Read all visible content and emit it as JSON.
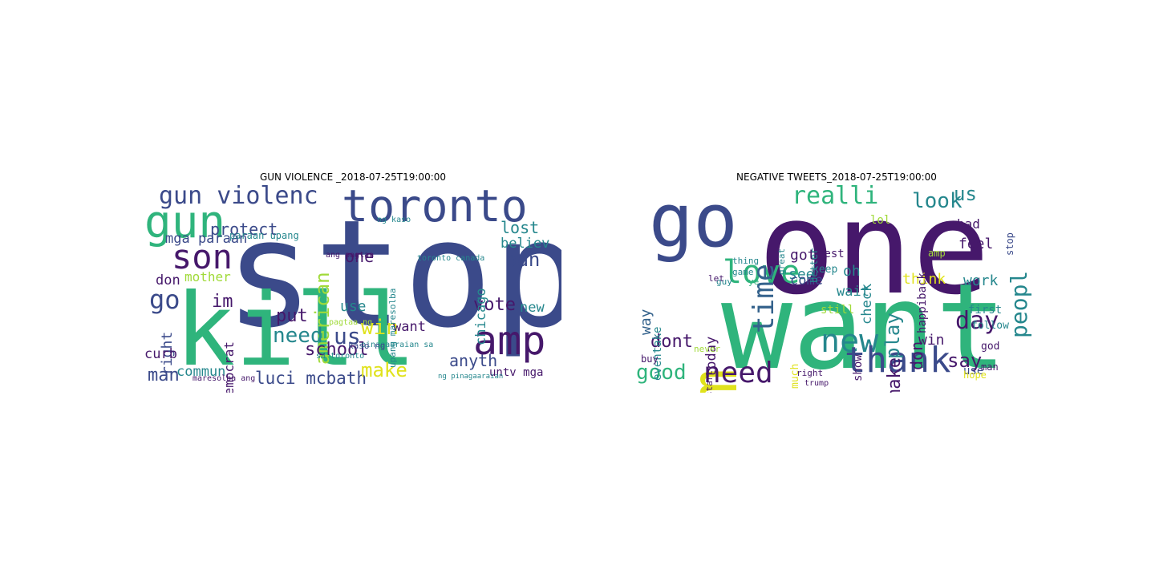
{
  "panels": [
    {
      "title": "GUN VIOLENCE _2018-07-25T19:00:00"
    },
    {
      "title": "NEGATIVE TWEETS_2018-07-25T19:00:00"
    }
  ],
  "colors": {
    "dark_purple": "#46186b",
    "navy": "#3b4a8a",
    "blue": "#34628c",
    "teal": "#25878d",
    "green": "#2fb47c",
    "lime": "#a0da39",
    "yellow": "#e0e21c"
  },
  "clouds": [
    {
      "words": [
        {
          "text": "stop",
          "c": "navy"
        },
        {
          "text": "kill",
          "c": "green"
        },
        {
          "text": "toronto",
          "c": "navy"
        },
        {
          "text": "gun",
          "c": "green"
        },
        {
          "text": "son",
          "c": "dark_purple"
        },
        {
          "text": "amp",
          "c": "dark_purple"
        },
        {
          "text": "gun violenc",
          "c": "navy"
        },
        {
          "text": "american",
          "c": "lime"
        },
        {
          "text": "luci mcbath",
          "c": "navy"
        },
        {
          "text": "school",
          "c": "dark_purple"
        },
        {
          "text": "make",
          "c": "yellow"
        },
        {
          "text": "win",
          "c": "yellow"
        },
        {
          "text": "us",
          "c": "navy"
        },
        {
          "text": "need",
          "c": "teal"
        },
        {
          "text": "ban",
          "c": "navy"
        },
        {
          "text": "lost",
          "c": "teal"
        },
        {
          "text": "believ",
          "c": "teal"
        },
        {
          "text": "vote",
          "c": "dark_purple"
        },
        {
          "text": "new",
          "c": "teal"
        },
        {
          "text": "anyth",
          "c": "navy"
        },
        {
          "text": "go",
          "c": "navy"
        },
        {
          "text": "protect",
          "c": "navy"
        },
        {
          "text": "mga paraan",
          "c": "navy"
        },
        {
          "text": "mother",
          "c": "lime"
        },
        {
          "text": "don",
          "c": "dark_purple"
        },
        {
          "text": "im",
          "c": "dark_purple"
        },
        {
          "text": "one",
          "c": "dark_purple"
        },
        {
          "text": "put",
          "c": "dark_purple"
        },
        {
          "text": "use",
          "c": "teal"
        },
        {
          "text": "want",
          "c": "dark_purple"
        },
        {
          "text": "chicago",
          "c": "teal"
        },
        {
          "text": "right",
          "c": "navy"
        },
        {
          "text": "curb",
          "c": "dark_purple"
        },
        {
          "text": "man",
          "c": "navy"
        },
        {
          "text": "commun",
          "c": "teal"
        },
        {
          "text": "democrat",
          "c": "dark_purple"
        },
        {
          "text": "untv mga",
          "c": "dark_purple"
        },
        {
          "text": "paraan upang",
          "c": "teal"
        },
        {
          "text": "upang maresolba",
          "c": "teal"
        },
        {
          "text": "toronto canada",
          "c": "teal"
        },
        {
          "text": "ang pagtaa",
          "c": "dark_purple"
        },
        {
          "text": "pagtaa ng",
          "c": "lime"
        },
        {
          "text": "maresolba ang",
          "c": "dark_purple"
        },
        {
          "text": "pinagaaraian sa",
          "c": "teal"
        },
        {
          "text": "ng pinagaaraian",
          "c": "teal"
        },
        {
          "text": "sa toronto",
          "c": "teal"
        },
        {
          "text": "kaso ng",
          "c": "navy"
        },
        {
          "text": "ng kaso",
          "c": "teal"
        }
      ]
    },
    {
      "words": [
        {
          "text": "one",
          "c": "dark_purple"
        },
        {
          "text": "want",
          "c": "green"
        },
        {
          "text": "go",
          "c": "navy"
        },
        {
          "text": "im",
          "c": "yellow"
        },
        {
          "text": "love",
          "c": "green"
        },
        {
          "text": "time",
          "c": "blue"
        },
        {
          "text": "realli",
          "c": "green"
        },
        {
          "text": "look",
          "c": "teal"
        },
        {
          "text": "us",
          "c": "teal"
        },
        {
          "text": "peopl",
          "c": "teal"
        },
        {
          "text": "know",
          "c": "dark_purple"
        },
        {
          "text": "new",
          "c": "teal"
        },
        {
          "text": "thank",
          "c": "navy"
        },
        {
          "text": "need",
          "c": "dark_purple"
        },
        {
          "text": "day",
          "c": "dark_purple"
        },
        {
          "text": "say",
          "c": "dark_purple"
        },
        {
          "text": "good",
          "c": "green"
        },
        {
          "text": "dont",
          "c": "dark_purple"
        },
        {
          "text": "got",
          "c": "dark_purple"
        },
        {
          "text": "see",
          "c": "teal"
        },
        {
          "text": "play",
          "c": "teal"
        },
        {
          "text": "make",
          "c": "dark_purple"
        },
        {
          "text": "don",
          "c": "dark_purple"
        },
        {
          "text": "think",
          "c": "yellow"
        },
        {
          "text": "work",
          "c": "teal"
        },
        {
          "text": "feel",
          "c": "dark_purple"
        },
        {
          "text": "check",
          "c": "teal"
        },
        {
          "text": "way",
          "c": "blue"
        },
        {
          "text": "eventake",
          "c": "teal"
        },
        {
          "text": "today",
          "c": "dark_purple"
        },
        {
          "text": "come",
          "c": "navy"
        },
        {
          "text": "wait",
          "c": "teal"
        },
        {
          "text": "oh",
          "c": "teal"
        },
        {
          "text": "show",
          "c": "dark_purple"
        },
        {
          "text": "much",
          "c": "yellow"
        },
        {
          "text": "win",
          "c": "dark_purple"
        },
        {
          "text": "use",
          "c": "navy"
        },
        {
          "text": "lol",
          "c": "lime"
        },
        {
          "text": "stop",
          "c": "navy"
        },
        {
          "text": "happiback",
          "c": "dark_purple"
        },
        {
          "text": "bad",
          "c": "dark_purple"
        },
        {
          "text": "first",
          "c": "teal"
        },
        {
          "text": "follow",
          "c": "teal"
        },
        {
          "text": "god",
          "c": "dark_purple"
        },
        {
          "text": "hope",
          "c": "yellow"
        },
        {
          "text": "man",
          "c": "dark_purple"
        },
        {
          "text": "buy",
          "c": "dark_purple"
        },
        {
          "text": "still",
          "c": "lime"
        },
        {
          "text": "best",
          "c": "dark_purple"
        },
        {
          "text": "keep",
          "c": "teal"
        },
        {
          "text": "better",
          "c": "teal"
        },
        {
          "text": "amp",
          "c": "lime"
        },
        {
          "text": "start",
          "c": "dark_purple"
        },
        {
          "text": "never",
          "c": "lime"
        },
        {
          "text": "right",
          "c": "dark_purple"
        },
        {
          "text": "guy",
          "c": "teal"
        },
        {
          "text": "thing",
          "c": "teal"
        },
        {
          "text": "let",
          "c": "dark_purple"
        },
        {
          "text": "ye",
          "c": "green"
        },
        {
          "text": "game",
          "c": "teal"
        },
        {
          "text": "great",
          "c": "teal"
        },
        {
          "text": "trump",
          "c": "dark_purple"
        }
      ]
    }
  ]
}
